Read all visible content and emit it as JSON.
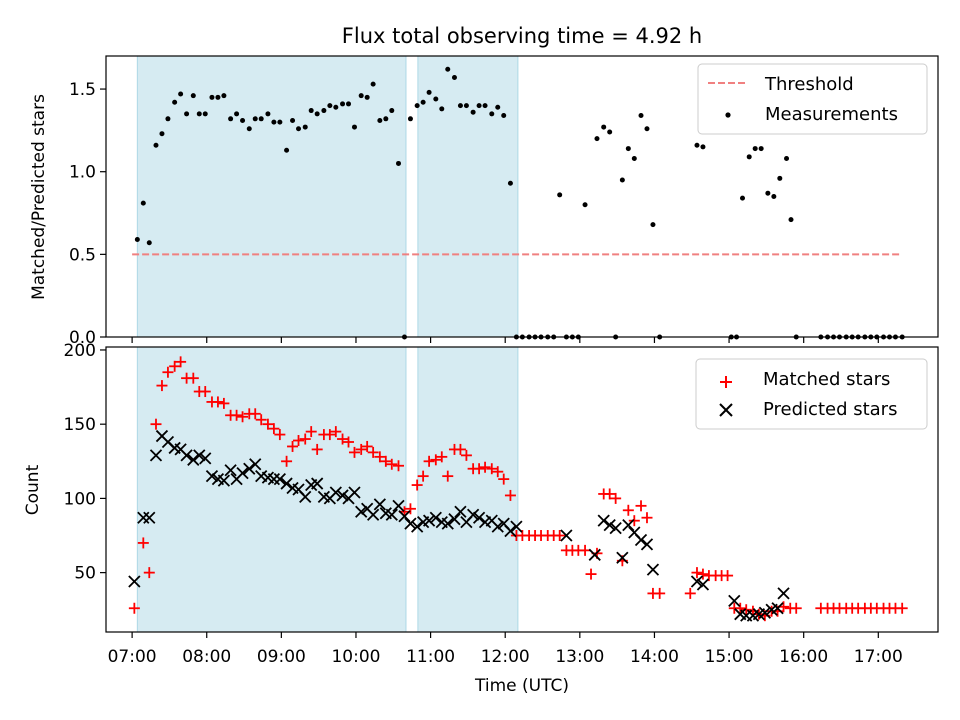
{
  "chart_data": {
    "title": "Flux total observing time = 4.92 h",
    "x_axis": {
      "label": "Time (UTC)",
      "range_hours": [
        6.65,
        17.8
      ],
      "tick_hours": [
        7,
        8,
        9,
        10,
        11,
        12,
        13,
        14,
        15,
        16,
        17
      ],
      "tick_labels": [
        "07:00",
        "08:00",
        "09:00",
        "10:00",
        "11:00",
        "12:00",
        "13:00",
        "14:00",
        "15:00",
        "16:00",
        "17:00"
      ]
    },
    "observing_windows_hours": [
      [
        7.07,
        10.67
      ],
      [
        10.83,
        12.17
      ]
    ],
    "charts": [
      {
        "type": "scatter",
        "ylabel": "Matched/Predicted stars",
        "ylim": [
          0,
          1.7
        ],
        "yticks": [
          0.0,
          0.5,
          1.0,
          1.5
        ],
        "ytick_labels": [
          "0.0",
          "0.5",
          "1.0",
          "1.5"
        ],
        "legend": {
          "position": "top-right",
          "entries": [
            "Threshold",
            "Measurements"
          ]
        },
        "threshold": {
          "name": "Threshold",
          "value": 0.5,
          "x_range": [
            7.0,
            17.3
          ],
          "color": "#f08080",
          "dashed": true
        },
        "series": [
          {
            "name": "Measurements",
            "color": "#000000",
            "marker": "dot",
            "x": [
              7.07,
              7.15,
              7.23,
              7.32,
              7.4,
              7.48,
              7.57,
              7.65,
              7.73,
              7.82,
              7.9,
              7.98,
              8.07,
              8.15,
              8.23,
              8.32,
              8.4,
              8.48,
              8.57,
              8.65,
              8.73,
              8.82,
              8.9,
              8.98,
              9.07,
              9.15,
              9.23,
              9.32,
              9.4,
              9.48,
              9.57,
              9.65,
              9.73,
              9.82,
              9.9,
              9.98,
              10.07,
              10.15,
              10.23,
              10.32,
              10.4,
              10.48,
              10.57,
              10.65,
              10.73,
              10.82,
              10.9,
              10.98,
              11.07,
              11.15,
              11.23,
              11.32,
              11.4,
              11.48,
              11.57,
              11.65,
              11.73,
              11.82,
              11.9,
              11.98,
              12.07,
              12.15,
              12.23,
              12.32,
              12.4,
              12.48,
              12.57,
              12.65,
              12.73,
              12.82,
              12.9,
              12.98,
              13.07,
              13.23,
              13.32,
              13.4,
              13.48,
              13.57,
              13.65,
              13.73,
              13.82,
              13.9,
              13.98,
              14.07,
              14.57,
              14.65,
              15.03,
              15.1,
              15.18,
              15.27,
              15.35,
              15.43,
              15.52,
              15.6,
              15.68,
              15.77,
              15.83,
              15.9,
              16.23,
              16.32,
              16.4,
              16.48,
              16.57,
              16.65,
              16.73,
              16.82,
              16.9,
              16.98,
              17.07,
              17.15,
              17.23,
              17.32
            ],
            "y": [
              0.59,
              0.81,
              0.57,
              1.16,
              1.23,
              1.32,
              1.42,
              1.47,
              1.35,
              1.46,
              1.35,
              1.35,
              1.45,
              1.45,
              1.46,
              1.32,
              1.35,
              1.31,
              1.26,
              1.32,
              1.32,
              1.35,
              1.3,
              1.3,
              1.13,
              1.31,
              1.26,
              1.27,
              1.37,
              1.35,
              1.37,
              1.4,
              1.39,
              1.41,
              1.41,
              1.27,
              1.46,
              1.45,
              1.53,
              1.31,
              1.32,
              1.37,
              1.05,
              0.0,
              1.32,
              1.4,
              1.42,
              1.48,
              1.44,
              1.38,
              1.62,
              1.57,
              1.4,
              1.4,
              1.36,
              1.4,
              1.4,
              1.35,
              1.39,
              1.34,
              0.93,
              0.0,
              0.0,
              0.0,
              0.0,
              0.0,
              0.0,
              0.0,
              0.86,
              0.0,
              0.0,
              0.0,
              0.8,
              1.2,
              1.27,
              1.24,
              0.0,
              0.95,
              1.14,
              1.08,
              1.34,
              1.26,
              0.68,
              0.0,
              1.16,
              1.15,
              0.0,
              0.0,
              0.84,
              1.09,
              1.14,
              1.14,
              0.87,
              0.85,
              0.96,
              1.08,
              0.71,
              0.0,
              0.0,
              0.0,
              0.0,
              0.0,
              0.0,
              0.0,
              0.0,
              0.0,
              0.0,
              0.0,
              0.0,
              0.0,
              0.0,
              0.0
            ]
          }
        ]
      },
      {
        "type": "scatter",
        "ylabel": "Count",
        "ylim": [
          10,
          202
        ],
        "yticks": [
          50,
          100,
          150,
          200
        ],
        "ytick_labels": [
          "50",
          "100",
          "150",
          "200"
        ],
        "legend": {
          "position": "top-right",
          "entries": [
            "Matched stars",
            "Predicted stars"
          ]
        },
        "series": [
          {
            "name": "Matched stars",
            "color": "#ff0000",
            "marker": "plus",
            "x": [
              7.03,
              7.15,
              7.23,
              7.32,
              7.4,
              7.48,
              7.57,
              7.65,
              7.73,
              7.82,
              7.9,
              7.98,
              8.07,
              8.15,
              8.23,
              8.32,
              8.4,
              8.48,
              8.57,
              8.65,
              8.73,
              8.82,
              8.9,
              8.98,
              9.07,
              9.15,
              9.23,
              9.32,
              9.4,
              9.48,
              9.57,
              9.65,
              9.73,
              9.82,
              9.9,
              9.98,
              10.07,
              10.15,
              10.23,
              10.32,
              10.4,
              10.48,
              10.57,
              10.65,
              10.73,
              10.82,
              10.9,
              10.98,
              11.07,
              11.15,
              11.23,
              11.32,
              11.4,
              11.48,
              11.57,
              11.65,
              11.73,
              11.82,
              11.9,
              11.98,
              12.07,
              12.15,
              12.23,
              12.32,
              12.4,
              12.48,
              12.57,
              12.65,
              12.73,
              12.82,
              12.9,
              12.98,
              13.07,
              13.15,
              13.23,
              13.32,
              13.4,
              13.48,
              13.57,
              13.65,
              13.73,
              13.82,
              13.9,
              13.98,
              14.07,
              14.48,
              14.57,
              14.65,
              14.73,
              14.82,
              14.9,
              14.98,
              15.07,
              15.15,
              15.23,
              15.32,
              15.4,
              15.48,
              15.57,
              15.65,
              15.73,
              15.82,
              15.9,
              16.23,
              16.32,
              16.4,
              16.48,
              16.57,
              16.65,
              16.73,
              16.82,
              16.9,
              16.98,
              17.07,
              17.15,
              17.23,
              17.32
            ],
            "y": [
              26,
              70,
              50,
              150,
              176,
              185,
              189,
              192,
              181,
              181,
              172,
              172,
              165,
              165,
              164,
              156,
              156,
              155,
              157,
              157,
              153,
              150,
              147,
              143,
              125,
              135,
              139,
              140,
              145,
              133,
              143,
              143,
              145,
              140,
              138,
              131,
              133,
              135,
              131,
              128,
              125,
              123,
              122,
              91,
              93,
              109,
              115,
              125,
              126,
              128,
              115,
              133,
              133,
              129,
              120,
              120,
              121,
              120,
              118,
              113,
              102,
              75,
              75,
              75,
              75,
              75,
              75,
              75,
              75,
              65,
              65,
              65,
              65,
              49,
              63,
              103,
              103,
              100,
              58,
              92,
              85,
              95,
              87,
              36,
              36,
              36,
              50,
              49,
              48,
              48,
              48,
              48,
              26,
              26,
              25,
              24,
              22,
              21,
              24,
              24,
              27,
              26,
              26,
              26,
              26,
              26,
              26,
              26,
              26,
              26,
              26,
              26,
              26,
              26,
              26,
              26,
              26
            ],
            "_note_skip": null
          },
          {
            "name": "Predicted stars",
            "color": "#000000",
            "marker": "x",
            "x": [
              7.03,
              7.15,
              7.23,
              7.32,
              7.4,
              7.48,
              7.57,
              7.65,
              7.73,
              7.82,
              7.9,
              7.98,
              8.07,
              8.15,
              8.23,
              8.32,
              8.4,
              8.48,
              8.57,
              8.65,
              8.73,
              8.82,
              8.9,
              8.98,
              9.07,
              9.15,
              9.23,
              9.32,
              9.4,
              9.48,
              9.57,
              9.65,
              9.73,
              9.82,
              9.9,
              9.98,
              10.07,
              10.15,
              10.23,
              10.32,
              10.4,
              10.48,
              10.57,
              10.65,
              10.73,
              10.82,
              10.9,
              10.98,
              11.07,
              11.15,
              11.23,
              11.32,
              11.4,
              11.48,
              11.57,
              11.65,
              11.73,
              11.82,
              11.9,
              11.98,
              12.07,
              12.15,
              12.82,
              13.2,
              13.32,
              13.4,
              13.48,
              13.57,
              13.65,
              13.73,
              13.82,
              13.9,
              13.98,
              14.57,
              14.65,
              15.07,
              15.15,
              15.23,
              15.32,
              15.4,
              15.48,
              15.57,
              15.65,
              15.73
            ],
            "y": [
              44,
              87,
              87,
              129,
              142,
              138,
              134,
              133,
              129,
              126,
              129,
              127,
              115,
              113,
              112,
              119,
              113,
              117,
              120,
              123,
              115,
              114,
              113,
              113,
              110,
              107,
              106,
              101,
              109,
              110,
              101,
              100,
              104,
              102,
              100,
              104,
              91,
              93,
              89,
              96,
              90,
              89,
              95,
              88,
              83,
              81,
              84,
              85,
              87,
              84,
              83,
              86,
              91,
              84,
              89,
              87,
              84,
              85,
              81,
              83,
              78,
              81,
              75,
              62,
              85,
              82,
              80,
              60,
              82,
              77,
              72,
              69,
              52,
              44,
              42,
              31,
              22,
              21,
              21,
              22,
              23,
              25,
              26,
              36
            ]
          }
        ]
      }
    ]
  }
}
